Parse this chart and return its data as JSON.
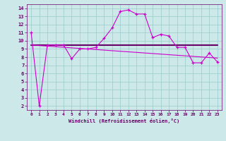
{
  "xlabel": "Windchill (Refroidissement éolien,°C)",
  "x_data": [
    0,
    1,
    2,
    3,
    4,
    5,
    6,
    7,
    8,
    9,
    10,
    11,
    12,
    13,
    14,
    15,
    16,
    17,
    18,
    19,
    20,
    21,
    22,
    23
  ],
  "y_line1": [
    11.0,
    2.0,
    9.5,
    9.5,
    9.5,
    7.8,
    9.0,
    9.0,
    9.2,
    10.3,
    11.6,
    13.6,
    13.8,
    13.3,
    13.3,
    10.4,
    10.8,
    10.6,
    9.2,
    9.2,
    7.3,
    7.3,
    8.5,
    7.4
  ],
  "y_line2": [
    9.5,
    9.42,
    9.35,
    9.28,
    9.21,
    9.14,
    9.07,
    9.0,
    8.93,
    8.86,
    8.79,
    8.72,
    8.65,
    8.58,
    8.51,
    8.44,
    8.37,
    8.3,
    8.23,
    8.16,
    8.09,
    8.02,
    7.95,
    7.88
  ],
  "y_line3": [
    9.5,
    9.5,
    9.5,
    9.5,
    9.5,
    9.5,
    9.5,
    9.5,
    9.5,
    9.5,
    9.5,
    9.5,
    9.5,
    9.5,
    9.5,
    9.5,
    9.5,
    9.5,
    9.5,
    9.5,
    9.5,
    9.5,
    9.5,
    9.5
  ],
  "color_line1": "#cc00cc",
  "color_line2": "#cc00cc",
  "color_line3": "#660066",
  "bg_color": "#cce8e8",
  "grid_color": "#99cccc",
  "text_color": "#660066",
  "ylim_min": 1.5,
  "ylim_max": 14.5,
  "xlim_min": -0.5,
  "xlim_max": 23.5,
  "yticks": [
    2,
    3,
    4,
    5,
    6,
    7,
    8,
    9,
    10,
    11,
    12,
    13,
    14
  ],
  "xticks": [
    0,
    1,
    2,
    3,
    4,
    5,
    6,
    7,
    8,
    9,
    10,
    11,
    12,
    13,
    14,
    15,
    16,
    17,
    18,
    19,
    20,
    21,
    22,
    23
  ]
}
